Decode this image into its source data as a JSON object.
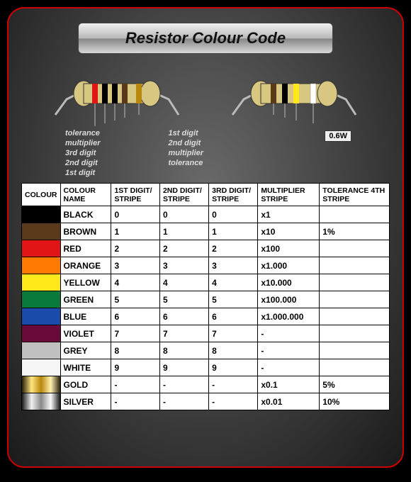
{
  "title": "Resistor Colour Code",
  "wattage": "0.6W",
  "labels_left": [
    "tolerance",
    "multiplier",
    "3rd digit",
    "2nd digit",
    "1st digit"
  ],
  "labels_right": [
    "1st digit",
    "2nd digit",
    "multiplier",
    "tolerance"
  ],
  "table": {
    "headers": [
      "COLOUR",
      "COLOUR NAME",
      "1ST DIGIT/ STRIPE",
      "2ND DIGIT/ STRIPE",
      "3RD DIGIT/ STRIPE",
      "MULTIPLIER STRIPE",
      "TOLERANCE 4TH STRIPE"
    ],
    "rows": [
      {
        "swatch": "#000000",
        "name": "BLACK",
        "d1": "0",
        "d2": "0",
        "d3": "0",
        "mult": "x1",
        "tol": ""
      },
      {
        "swatch": "#5a3a1a",
        "name": "BROWN",
        "d1": "1",
        "d2": "1",
        "d3": "1",
        "mult": "x10",
        "tol": "1%"
      },
      {
        "swatch": "#e11515",
        "name": "RED",
        "d1": "2",
        "d2": "2",
        "d3": "2",
        "mult": "x100",
        "tol": ""
      },
      {
        "swatch": "#ff7a00",
        "name": "ORANGE",
        "d1": "3",
        "d2": "3",
        "d3": "3",
        "mult": "x1.000",
        "tol": ""
      },
      {
        "swatch": "#ffe81a",
        "name": "YELLOW",
        "d1": "4",
        "d2": "4",
        "d3": "4",
        "mult": "x10.000",
        "tol": ""
      },
      {
        "swatch": "#0a7a3a",
        "name": "GREEN",
        "d1": "5",
        "d2": "5",
        "d3": "5",
        "mult": "x100.000",
        "tol": ""
      },
      {
        "swatch": "#1a4aaa",
        "name": "BLUE",
        "d1": "6",
        "d2": "6",
        "d3": "6",
        "mult": "x1.000.000",
        "tol": ""
      },
      {
        "swatch": "#6a0a3a",
        "name": "VIOLET",
        "d1": "7",
        "d2": "7",
        "d3": "7",
        "mult": "-",
        "tol": ""
      },
      {
        "swatch": "#c0c0c0",
        "name": "GREY",
        "d1": "8",
        "d2": "8",
        "d3": "8",
        "mult": "-",
        "tol": ""
      },
      {
        "swatch": "#f5f5f5",
        "name": "WHITE",
        "d1": "9",
        "d2": "9",
        "d3": "9",
        "mult": "-",
        "tol": ""
      },
      {
        "swatch": "gold-grad",
        "name": "GOLD",
        "d1": "-",
        "d2": "-",
        "d3": "-",
        "mult": "x0.1",
        "tol": "5%"
      },
      {
        "swatch": "silver-grad",
        "name": "SILVER",
        "d1": "-",
        "d2": "-",
        "d3": "-",
        "mult": "x0.01",
        "tol": "10%"
      }
    ]
  },
  "resistor5": {
    "body_color": "#d8c780",
    "bands": [
      "#e11515",
      "#000000",
      "#000000",
      "#5a3a1a",
      "#b8860b"
    ]
  },
  "resistor4": {
    "body_color": "#d8c780",
    "bands": [
      "#5a3a1a",
      "#000000",
      "#ffe81a",
      "#ffffff"
    ]
  },
  "colors": {
    "frame_border": "#cc0000",
    "background": "#000000",
    "panel_gradient_inner": "#6a6a6a",
    "panel_gradient_outer": "#1a1a1a",
    "label_text": "#ddd"
  }
}
